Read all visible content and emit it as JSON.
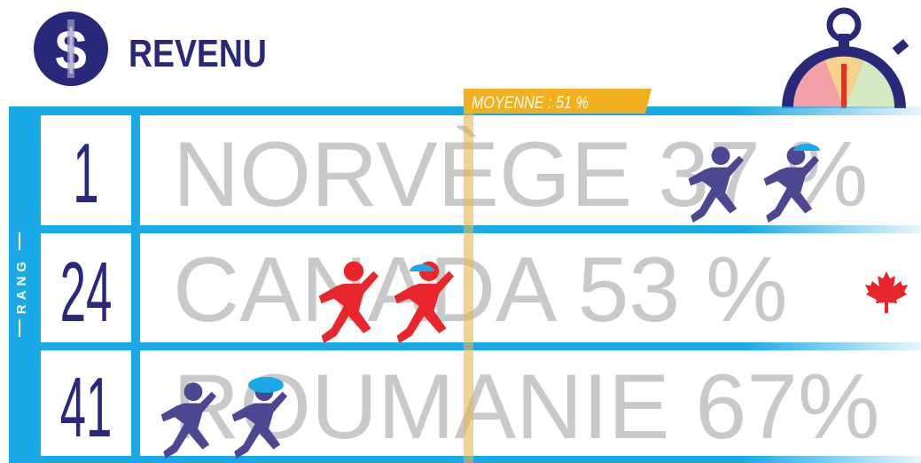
{
  "header": {
    "title": "REVENU"
  },
  "average": {
    "label": "MOYENNE : 51 %"
  },
  "rank_label": "RANG",
  "rows": [
    {
      "rank": "1",
      "label": "NORVÈGE 37 %"
    },
    {
      "rank": "24",
      "label": "CANADA 53 %"
    },
    {
      "rank": "41",
      "label": "ROUMANIE 67%"
    }
  ]
}
